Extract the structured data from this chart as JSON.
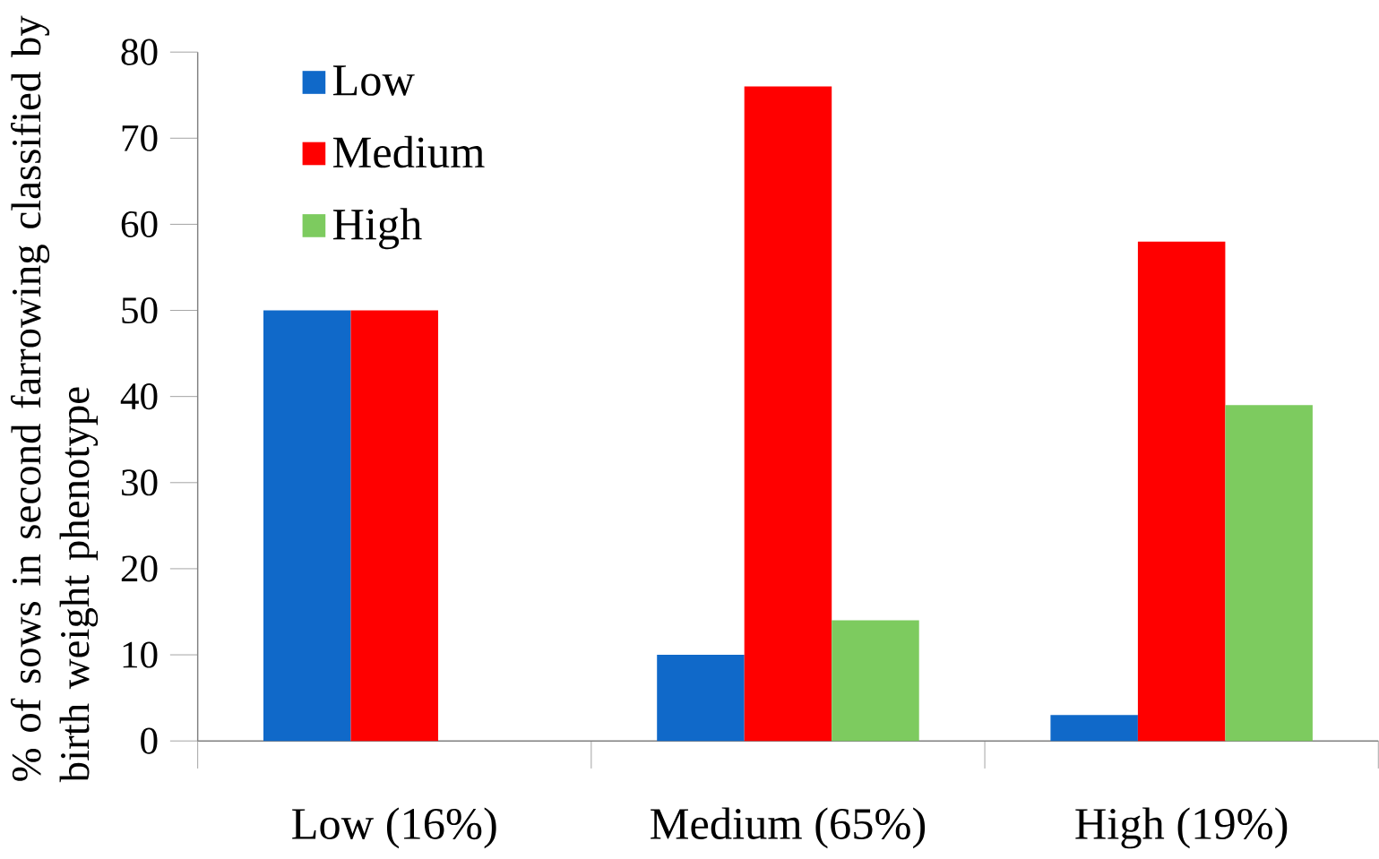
{
  "chart_data": {
    "type": "bar",
    "ylabel": "% of sows in second farrowing classified by  birth weight phenotype",
    "categories": [
      "Low (16%)",
      "Medium (65%)",
      "High (19%)"
    ],
    "series": [
      {
        "name": "Low",
        "color": "#1069c9",
        "values": [
          50,
          10,
          3
        ]
      },
      {
        "name": "Medium",
        "color": "#ff0000",
        "values": [
          50,
          76,
          58
        ]
      },
      {
        "name": "High",
        "color": "#7dcb5f",
        "values": [
          null,
          14,
          39
        ]
      }
    ],
    "ylim": [
      0,
      80
    ],
    "yticks": [
      0,
      10,
      20,
      30,
      40,
      50,
      60,
      70,
      80
    ],
    "legend": "top left",
    "grid": false
  }
}
